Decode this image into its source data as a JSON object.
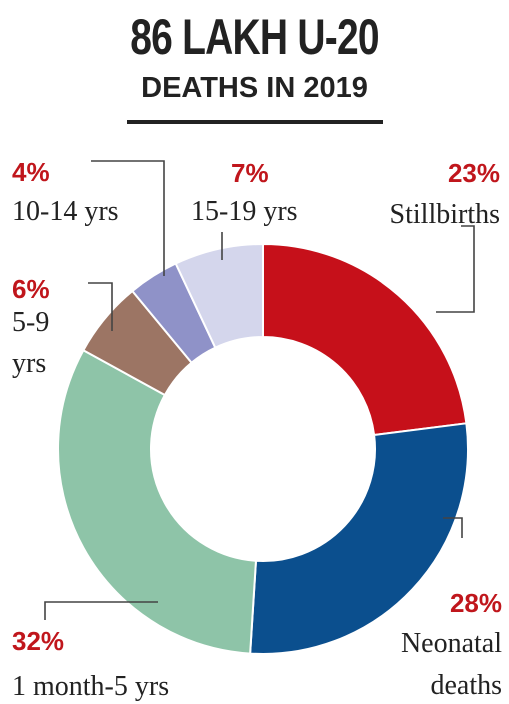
{
  "header": {
    "title": "86 LAKH U-20",
    "subtitle": "DEATHS IN 2019"
  },
  "colors": {
    "accent_pct": "#c0161c",
    "leader": "#444444"
  },
  "chart_data": {
    "type": "pie",
    "donut": true,
    "title": "86 LAKH U-20",
    "subtitle": "DEATHS IN 2019",
    "slices": [
      {
        "label": "Stillbirths",
        "label_lines": [
          "Stillbirths"
        ],
        "value": 23,
        "pct_label": "23%",
        "color": "#c6101a"
      },
      {
        "label": "Neonatal deaths",
        "label_lines": [
          "Neonatal",
          "deaths"
        ],
        "value": 28,
        "pct_label": "28%",
        "color": "#0b4f8e"
      },
      {
        "label": "1 month-5 yrs",
        "label_lines": [
          "1 month-5 yrs"
        ],
        "value": 32,
        "pct_label": "32%",
        "color": "#8ec4a8"
      },
      {
        "label": "5-9 yrs",
        "label_lines": [
          "5-9",
          "yrs"
        ],
        "value": 6,
        "pct_label": "6%",
        "color": "#9c7564"
      },
      {
        "label": "10-14 yrs",
        "label_lines": [
          "10-14 yrs"
        ],
        "value": 4,
        "pct_label": "4%",
        "color": "#8f92c8"
      },
      {
        "label": "15-19 yrs",
        "label_lines": [
          "15-19 yrs"
        ],
        "value": 7,
        "pct_label": "7%",
        "color": "#d4d6ec"
      }
    ]
  }
}
